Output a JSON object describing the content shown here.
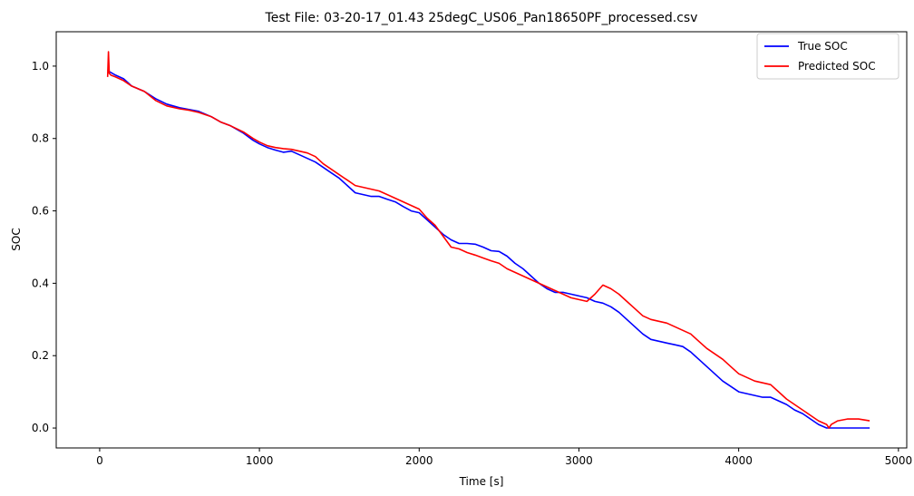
{
  "chart_data": {
    "type": "line",
    "title": "Test File: 03-20-17_01.43 25degC_US06_Pan18650PF_processed.csv",
    "xlabel": "Time [s]",
    "ylabel": "SOC",
    "xlim": [
      -272,
      5052
    ],
    "ylim": [
      -0.055,
      1.095
    ],
    "xticks": [
      0,
      1000,
      2000,
      3000,
      4000,
      5000
    ],
    "xtick_labels": [
      "0",
      "1000",
      "2000",
      "3000",
      "4000",
      "5000"
    ],
    "yticks": [
      0.0,
      0.2,
      0.4,
      0.6,
      0.8,
      1.0
    ],
    "ytick_labels": [
      "0.0",
      "0.2",
      "0.4",
      "0.6",
      "0.8",
      "1.0"
    ],
    "grid": false,
    "legend": "top-right",
    "series": [
      {
        "name": "True SOC",
        "color": "#0000ff",
        "x": [
          50,
          60,
          100,
          150,
          200,
          280,
          350,
          420,
          500,
          560,
          620,
          700,
          760,
          820,
          900,
          960,
          1000,
          1050,
          1100,
          1150,
          1200,
          1250,
          1300,
          1350,
          1400,
          1450,
          1500,
          1550,
          1600,
          1650,
          1700,
          1750,
          1800,
          1850,
          1900,
          1950,
          2000,
          2050,
          2100,
          2150,
          2200,
          2250,
          2300,
          2350,
          2400,
          2450,
          2500,
          2550,
          2600,
          2650,
          2700,
          2750,
          2800,
          2850,
          2900,
          2950,
          3000,
          3050,
          3100,
          3150,
          3200,
          3250,
          3300,
          3350,
          3400,
          3450,
          3500,
          3550,
          3600,
          3650,
          3700,
          3750,
          3800,
          3850,
          3900,
          3950,
          4000,
          4050,
          4100,
          4150,
          4200,
          4250,
          4300,
          4350,
          4400,
          4450,
          4500,
          4550,
          4600,
          4700,
          4820
        ],
        "y": [
          0.99,
          0.985,
          0.975,
          0.965,
          0.945,
          0.93,
          0.91,
          0.895,
          0.885,
          0.88,
          0.875,
          0.86,
          0.845,
          0.835,
          0.815,
          0.795,
          0.785,
          0.775,
          0.768,
          0.762,
          0.765,
          0.755,
          0.745,
          0.735,
          0.72,
          0.705,
          0.69,
          0.67,
          0.65,
          0.645,
          0.64,
          0.64,
          0.632,
          0.625,
          0.612,
          0.6,
          0.595,
          0.575,
          0.555,
          0.535,
          0.52,
          0.51,
          0.51,
          0.508,
          0.5,
          0.49,
          0.488,
          0.475,
          0.455,
          0.44,
          0.42,
          0.4,
          0.385,
          0.375,
          0.375,
          0.37,
          0.365,
          0.36,
          0.35,
          0.345,
          0.335,
          0.32,
          0.3,
          0.28,
          0.26,
          0.245,
          0.24,
          0.235,
          0.23,
          0.225,
          0.21,
          0.19,
          0.17,
          0.15,
          0.13,
          0.115,
          0.1,
          0.095,
          0.09,
          0.085,
          0.085,
          0.075,
          0.065,
          0.05,
          0.04,
          0.025,
          0.01,
          0.0,
          0.0,
          0.0,
          0.0
        ]
      },
      {
        "name": "Predicted SOC",
        "color": "#ff0000",
        "x": [
          50,
          55,
          60,
          70,
          100,
          150,
          200,
          280,
          350,
          420,
          500,
          560,
          620,
          700,
          760,
          820,
          900,
          960,
          1000,
          1050,
          1100,
          1150,
          1200,
          1250,
          1300,
          1350,
          1400,
          1450,
          1500,
          1550,
          1600,
          1650,
          1700,
          1750,
          1800,
          1850,
          1900,
          1950,
          2000,
          2050,
          2100,
          2150,
          2200,
          2250,
          2300,
          2350,
          2400,
          2450,
          2500,
          2550,
          2600,
          2650,
          2700,
          2750,
          2800,
          2850,
          2900,
          2950,
          3000,
          3050,
          3100,
          3150,
          3200,
          3250,
          3300,
          3350,
          3400,
          3450,
          3500,
          3550,
          3600,
          3650,
          3700,
          3750,
          3800,
          3850,
          3900,
          3950,
          4000,
          4050,
          4100,
          4150,
          4200,
          4250,
          4300,
          4350,
          4400,
          4450,
          4500,
          4550,
          4565,
          4580,
          4620,
          4680,
          4750,
          4820
        ],
        "y": [
          0.97,
          1.04,
          0.98,
          0.975,
          0.97,
          0.96,
          0.945,
          0.93,
          0.905,
          0.89,
          0.882,
          0.878,
          0.872,
          0.86,
          0.845,
          0.835,
          0.818,
          0.8,
          0.79,
          0.78,
          0.775,
          0.772,
          0.77,
          0.765,
          0.76,
          0.75,
          0.73,
          0.715,
          0.7,
          0.685,
          0.67,
          0.665,
          0.66,
          0.655,
          0.645,
          0.635,
          0.625,
          0.615,
          0.605,
          0.58,
          0.56,
          0.53,
          0.5,
          0.495,
          0.485,
          0.478,
          0.47,
          0.462,
          0.455,
          0.44,
          0.43,
          0.42,
          0.41,
          0.4,
          0.39,
          0.38,
          0.37,
          0.36,
          0.355,
          0.35,
          0.37,
          0.395,
          0.385,
          0.37,
          0.35,
          0.33,
          0.31,
          0.3,
          0.295,
          0.29,
          0.28,
          0.27,
          0.26,
          0.24,
          0.22,
          0.205,
          0.19,
          0.17,
          0.15,
          0.14,
          0.13,
          0.125,
          0.12,
          0.1,
          0.08,
          0.065,
          0.05,
          0.035,
          0.02,
          0.01,
          0.0,
          0.01,
          0.02,
          0.025,
          0.025,
          0.02
        ]
      }
    ]
  }
}
